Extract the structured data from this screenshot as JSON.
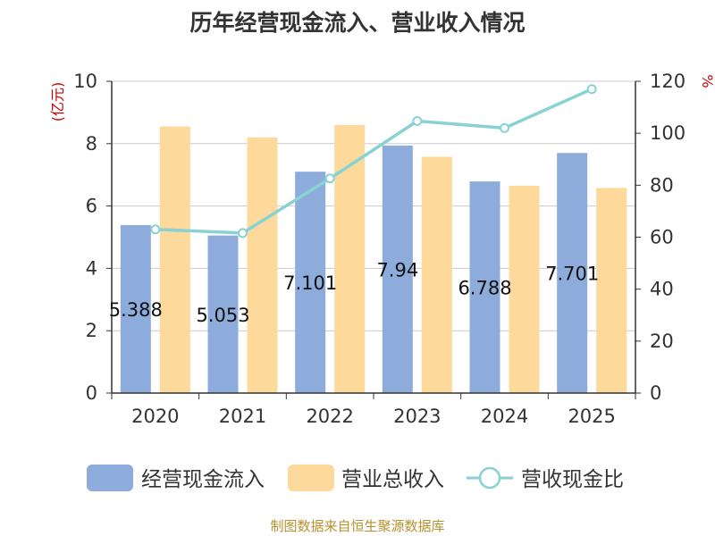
{
  "colors": {
    "cash_bar": "#8eacdb",
    "revenue_bar": "#fdd99c",
    "ratio_line": "#88d2d4",
    "axis_unit": "#cc0000",
    "source": "#b8912f"
  },
  "source_note": "制图数据来自恒生聚源数据库",
  "chart_data": {
    "type": "bar",
    "title": "历年经营现金流入、营业收入情况",
    "categories": [
      "2020",
      "2021",
      "2022",
      "2023",
      "2024",
      "2025"
    ],
    "y_left": {
      "unit": "(亿元)",
      "min": 0,
      "max": 10,
      "ticks": [
        "0",
        "2",
        "4",
        "6",
        "8",
        "10"
      ]
    },
    "y_right": {
      "unit": "%",
      "min": 0,
      "max": 120,
      "ticks": [
        "0",
        "20",
        "40",
        "60",
        "80",
        "100",
        "120"
      ]
    },
    "grid": true,
    "legend_position": "bottom",
    "series": [
      {
        "name": "经营现金流入",
        "type": "bar",
        "axis": "left",
        "values": [
          5.388,
          5.053,
          7.101,
          7.94,
          6.788,
          7.701
        ],
        "labels": [
          "5.388",
          "5.053",
          "7.101",
          "7.94",
          "6.788",
          "7.701"
        ]
      },
      {
        "name": "营业总收入",
        "type": "bar",
        "axis": "left",
        "values": [
          8.55,
          8.2,
          8.6,
          7.58,
          6.65,
          6.58
        ]
      },
      {
        "name": "营收现金比",
        "type": "line",
        "axis": "right",
        "values": [
          63,
          61.6,
          82.6,
          104.7,
          102,
          117
        ]
      }
    ]
  }
}
